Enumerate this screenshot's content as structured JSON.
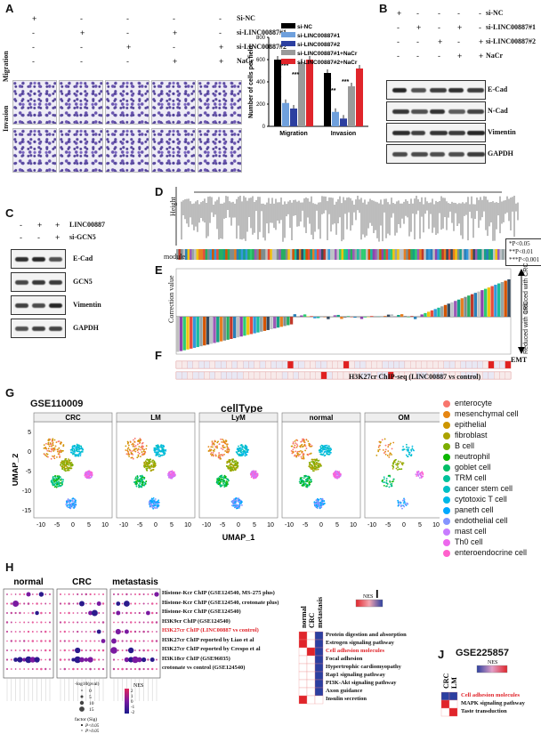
{
  "panels": {
    "A": "A",
    "B": "B",
    "C": "C",
    "D": "D",
    "E": "E",
    "F": "F",
    "G": "G",
    "H": "H",
    "I": "I",
    "J": "J"
  },
  "panelA": {
    "rows": [
      {
        "label": "Si-NC",
        "signs": [
          "+",
          "-",
          "-",
          "-",
          "-"
        ]
      },
      {
        "label": "si-LINC00887#1",
        "signs": [
          "-",
          "+",
          "-",
          "+",
          "-"
        ]
      },
      {
        "label": "si-LINC00887#2",
        "signs": [
          "-",
          "-",
          "+",
          "-",
          "+"
        ]
      },
      {
        "label": "NaCr",
        "signs": [
          "-",
          "-",
          "-",
          "+",
          "+"
        ]
      }
    ],
    "side_labels": [
      "Migration",
      "Invasion"
    ]
  },
  "chart_data": {
    "type": "bar",
    "categories": [
      "Migration",
      "Invasion"
    ],
    "series": [
      {
        "name": "si-NC",
        "color": "#000000",
        "values": [
          600,
          480
        ]
      },
      {
        "name": "si-LINC00887#1",
        "color": "#6fa0dc",
        "values": [
          210,
          130
        ]
      },
      {
        "name": "si-LINC00887#2",
        "color": "#2c3fa0",
        "values": [
          160,
          70
        ]
      },
      {
        "name": "si-LINC00887#1+NaCr",
        "color": "#9a9a9a",
        "values": [
          575,
          360
        ]
      },
      {
        "name": "si-LINC00887#2+NaCr",
        "color": "#e0252b",
        "values": [
          600,
          520
        ]
      }
    ],
    "ylabel": "Number of cells per field",
    "ylim": [
      0,
      800
    ],
    "yticks": [
      "0",
      "200",
      "400",
      "600",
      "800"
    ],
    "sig": [
      "***",
      "***",
      "***",
      "***",
      "***",
      "***",
      "**",
      "***"
    ]
  },
  "panelB": {
    "rows": [
      {
        "label": "si-NC",
        "signs": [
          "+",
          "-",
          "-",
          "-",
          "-"
        ]
      },
      {
        "label": "si-LINC00887#1",
        "signs": [
          "-",
          "+",
          "-",
          "+",
          "-"
        ]
      },
      {
        "label": "si-LINC00887#2",
        "signs": [
          "-",
          "-",
          "+",
          "-",
          "+"
        ]
      },
      {
        "label": "NaCr",
        "signs": [
          "-",
          "-",
          "-",
          "+",
          "+"
        ]
      }
    ],
    "blots": [
      "E-Cad",
      "N-Cad",
      "Vimentin",
      "GAPDH"
    ]
  },
  "panelC": {
    "rows": [
      {
        "label": "LINC00887",
        "signs": [
          "-",
          "+",
          "+"
        ]
      },
      {
        "label": "si-GCN5",
        "signs": [
          "-",
          "-",
          "+"
        ]
      }
    ],
    "blots": [
      "E-Cad",
      "GCN5",
      "Vimentin",
      "GAPDH"
    ]
  },
  "panelD": {
    "ylabel": "Height",
    "module_label": "module",
    "stats": [
      "*P<0.05",
      "**P<0.01",
      "***P<0.001"
    ]
  },
  "panelE": {
    "ylabel": "Correction value",
    "induced": "Induced with CRC",
    "reduced": "Reduced with CRC"
  },
  "panelF": {
    "emt": "EMT",
    "title": "H3K27cr ChIP-seq (LINC00887 vs control)"
  },
  "panelG": {
    "dataset": "GSE110009",
    "title": "cellType",
    "groups": [
      "CRC",
      "LM",
      "LyM",
      "normal",
      "OM"
    ],
    "xlabel": "UMAP_1",
    "ylabel": "UMAP_2",
    "xticks": [
      "-10",
      "-5",
      "0",
      "5",
      "10"
    ],
    "yticks": [
      "5",
      "0",
      "-5",
      "-10",
      "-15"
    ],
    "legend": [
      {
        "name": "enterocyte",
        "color": "#f8766d"
      },
      {
        "name": "mesenchymal cell",
        "color": "#e68613"
      },
      {
        "name": "epithelial",
        "color": "#cd9600"
      },
      {
        "name": "fibroblast",
        "color": "#aba300"
      },
      {
        "name": "B cell",
        "color": "#7cae00"
      },
      {
        "name": "neutrophil",
        "color": "#0cb702"
      },
      {
        "name": "goblet cell",
        "color": "#00be67"
      },
      {
        "name": "TRM cell",
        "color": "#00c19a"
      },
      {
        "name": "cancer stem cell",
        "color": "#00bfc4"
      },
      {
        "name": "cytotoxic T cell",
        "color": "#00b8e7"
      },
      {
        "name": "paneth cell",
        "color": "#00a9ff"
      },
      {
        "name": "endothelial cell",
        "color": "#8494ff"
      },
      {
        "name": "mast cell",
        "color": "#c77cff"
      },
      {
        "name": "Th0 cell",
        "color": "#ed68ed"
      },
      {
        "name": "enteroendocrine cell",
        "color": "#ff61cc"
      }
    ]
  },
  "panelH": {
    "groups": [
      "normal",
      "CRC",
      "metastasis"
    ],
    "rows": [
      "Histone-Kcr ChIP (GSE124540, MS-275 plus)",
      "Histone-Kcr ChIP (GSE124540, crotonate plus)",
      "Histone-Kcr ChIP (GSE124540)",
      "H3K9cr ChIP (GSE124540)",
      "H3K27cr ChIP (LINC00887 vs control)",
      "H3K27cr ChIP reported by Liao et al",
      "H3K27cr ChIP reported by Crespo et al",
      "H3K18cr ChIP (GSE96035)",
      "crotonate vs control (GSE124540)"
    ],
    "highlight_index": 4,
    "size_title": "-log10(pval)",
    "size_vals": [
      "0",
      "5",
      "10",
      "15"
    ],
    "nes_title": "NES",
    "nes_vals": [
      "2",
      "1",
      "0",
      "-1",
      "-2"
    ],
    "factor_title": "factor (Sig)",
    "factor_vals": [
      "P<0.05",
      "P>0.05"
    ]
  },
  "panelI": {
    "cols": [
      "normal",
      "CRC",
      "metastasis"
    ],
    "nes": "NES",
    "rows": [
      "Protein digestion and absorption",
      "Estrogen signaling pathway",
      "Cell adhesion molecules",
      "Focal adhesion",
      "Hypertrophic cardiomyopathy",
      "Rap1 signaling pathway",
      "PI3K-Akt signaling pathway",
      "Axon guidance",
      "Insulin secretion"
    ],
    "highlight_index": 2
  },
  "panelJ": {
    "dataset": "GSE225857",
    "cols": [
      "CRC",
      "LM"
    ],
    "nes": "NES",
    "rows": [
      "Cell adhesion molecules",
      "MAPK signaling pathway",
      "Taste transduction"
    ],
    "highlight_index": 0
  }
}
